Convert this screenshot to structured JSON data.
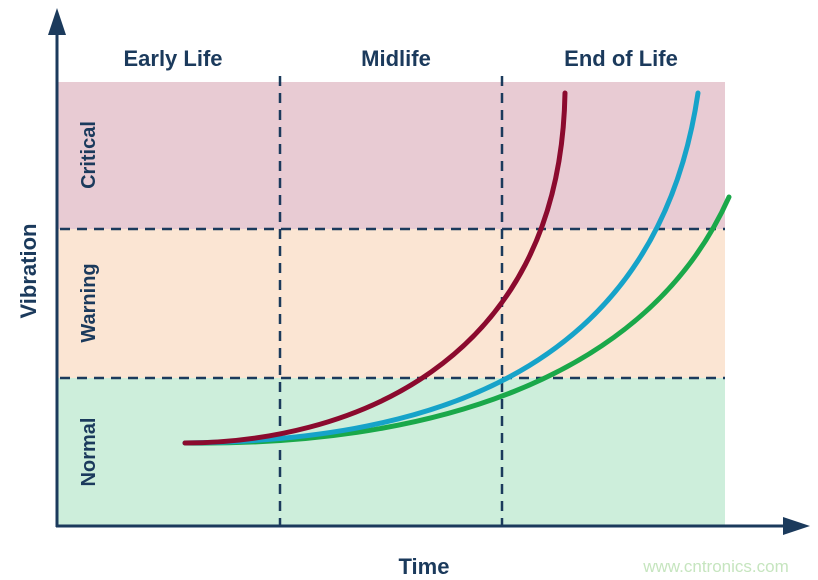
{
  "axes": {
    "y_label": "Vibration",
    "x_label": "Time"
  },
  "phases": [
    "Early Life",
    "Midlife",
    "End of Life"
  ],
  "zones": [
    {
      "label": "Critical",
      "color": "#e8cbd3"
    },
    {
      "label": "Warning",
      "color": "#fbe5d3"
    },
    {
      "label": "Normal",
      "color": "#cdeedb"
    }
  ],
  "curves": [
    {
      "color": "#8b0a2e"
    },
    {
      "color": "#16a3c9"
    },
    {
      "color": "#1aa84a"
    }
  ],
  "watermark": "www.cntronics.com"
}
